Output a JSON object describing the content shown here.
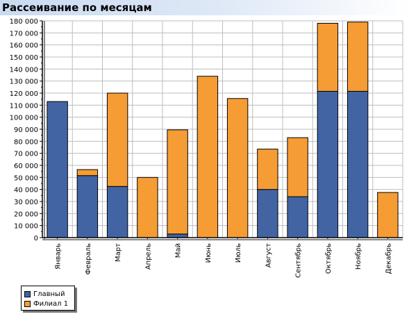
{
  "title": "Рассеивание по месяцам",
  "chart_data": {
    "type": "bar",
    "stacked": true,
    "title": "Рассеивание по месяцам",
    "categories": [
      "Январь",
      "Февраль",
      "Март",
      "Апрель",
      "Май",
      "Июнь",
      "Июль",
      "Август",
      "Сентябрь",
      "Октябрь",
      "Ноябрь",
      "Декабрь"
    ],
    "series": [
      {
        "name": "Главный",
        "color": "#4264a3",
        "values": [
          113000,
          51500,
          42500,
          0,
          3000,
          0,
          0,
          40000,
          34000,
          121500,
          121500,
          0
        ]
      },
      {
        "name": "Филиал 1",
        "color": "#f59c35",
        "values": [
          0,
          5000,
          77500,
          50000,
          86500,
          134000,
          115500,
          33500,
          49000,
          56500,
          57500,
          37500
        ]
      }
    ],
    "yticks": [
      "0",
      "10 000",
      "20 000",
      "30 000",
      "40 000",
      "50 000",
      "60 000",
      "70 000",
      "80 000",
      "90 000",
      "100 000",
      "110 000",
      "120 000",
      "130 000",
      "140 000",
      "150 000",
      "160 000",
      "170 000",
      "180 000"
    ],
    "ylim": [
      0,
      180000
    ],
    "grid": true,
    "legend_position": "bottom-left"
  }
}
